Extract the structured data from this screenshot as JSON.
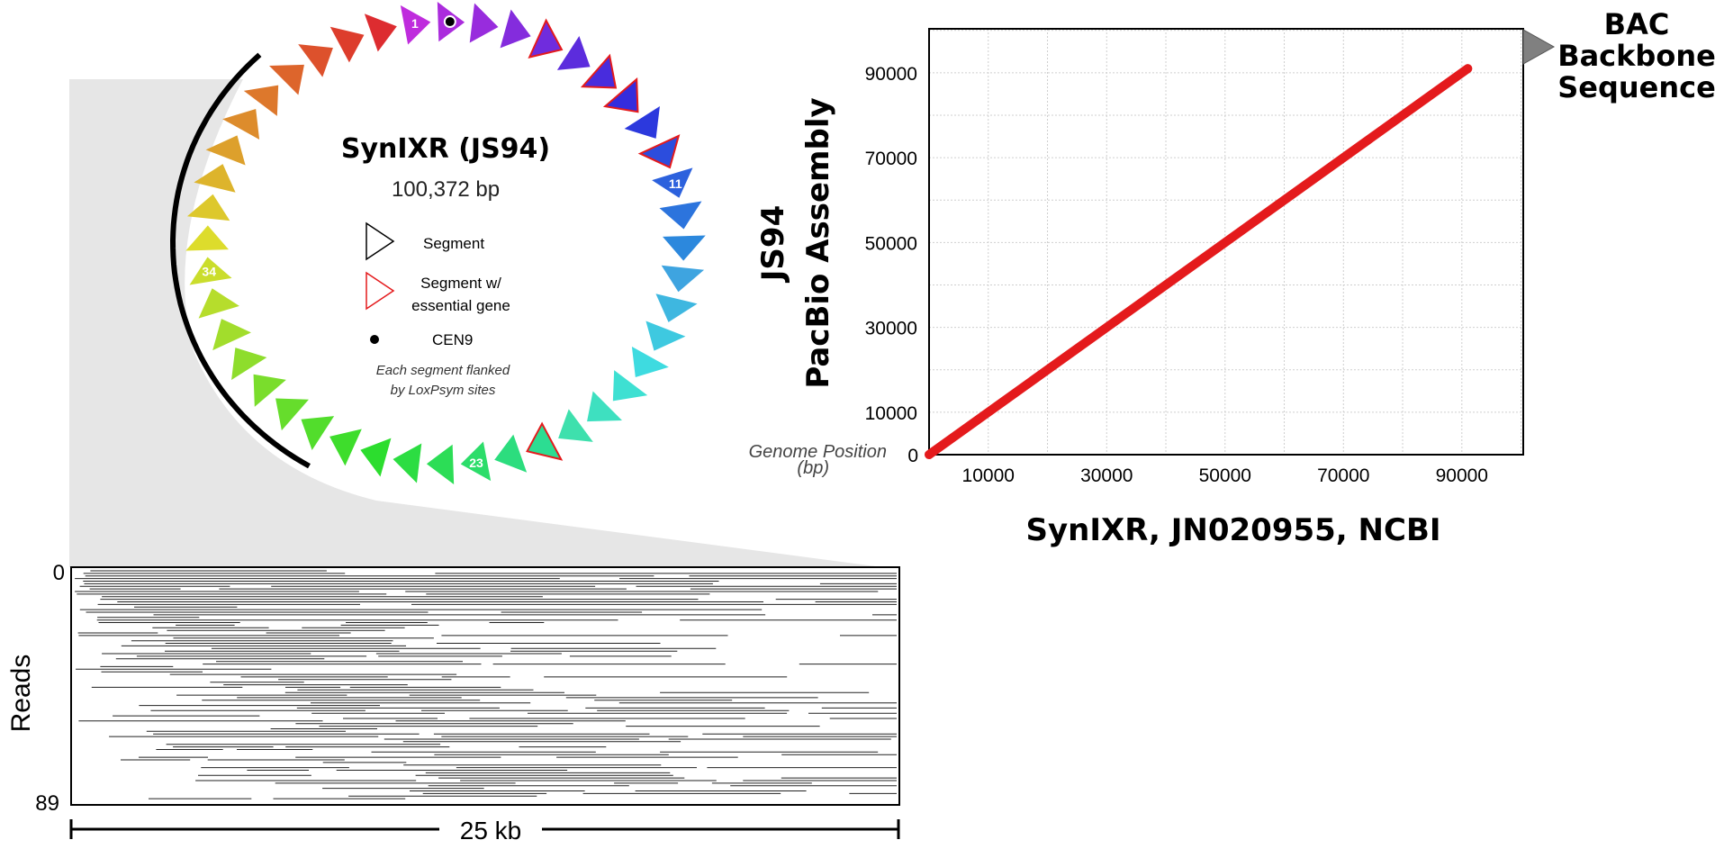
{
  "plasmid": {
    "title": "SynIXR (JS94)",
    "size": "100,372 bp",
    "segment_count": 44,
    "numbered_labels": [
      {
        "index": 0,
        "text": "1"
      },
      {
        "index": 10,
        "text": "11"
      },
      {
        "index": 22,
        "text": "23"
      },
      {
        "index": 33,
        "text": "34"
      }
    ],
    "essential_segments": [
      4,
      6,
      7,
      9,
      20
    ],
    "cen9_segment": 1,
    "legend": {
      "segment": "Segment",
      "essential_line1": "Segment w/",
      "essential_line2": "essential gene",
      "cen9": "CEN9",
      "note_line1": "Each segment flanked",
      "note_line2": "by LoxPsym sites"
    },
    "colors": {
      "essential_outline": "#e41a1c",
      "arc": "#000000"
    }
  },
  "reads_panel": {
    "y_top": "0",
    "y_bottom": "89",
    "y_label": "Reads",
    "scale_label": "25 kb",
    "read_count": 89
  },
  "chart_data": {
    "type": "line",
    "title": "",
    "xlabel": "SynIXR, JN020955, NCBI",
    "ylabel_line1": "JS94",
    "ylabel_line2": "PacBio Assembly",
    "corner_label_line1": "Genome Position",
    "corner_label_line2": "(bp)",
    "xlim": [
      0,
      100372
    ],
    "ylim": [
      0,
      100372
    ],
    "x_ticks": [
      10000,
      30000,
      50000,
      70000,
      90000
    ],
    "y_ticks": [
      0,
      10000,
      30000,
      50000,
      70000,
      90000
    ],
    "grid": true,
    "series": [
      {
        "values_x": [
          0,
          91000
        ],
        "values_y": [
          0,
          91000
        ],
        "color": "#e41a1c"
      }
    ],
    "annotation": {
      "line1": "BAC",
      "line2": "Backbone",
      "line3": "Sequence",
      "color": "#808080"
    }
  }
}
